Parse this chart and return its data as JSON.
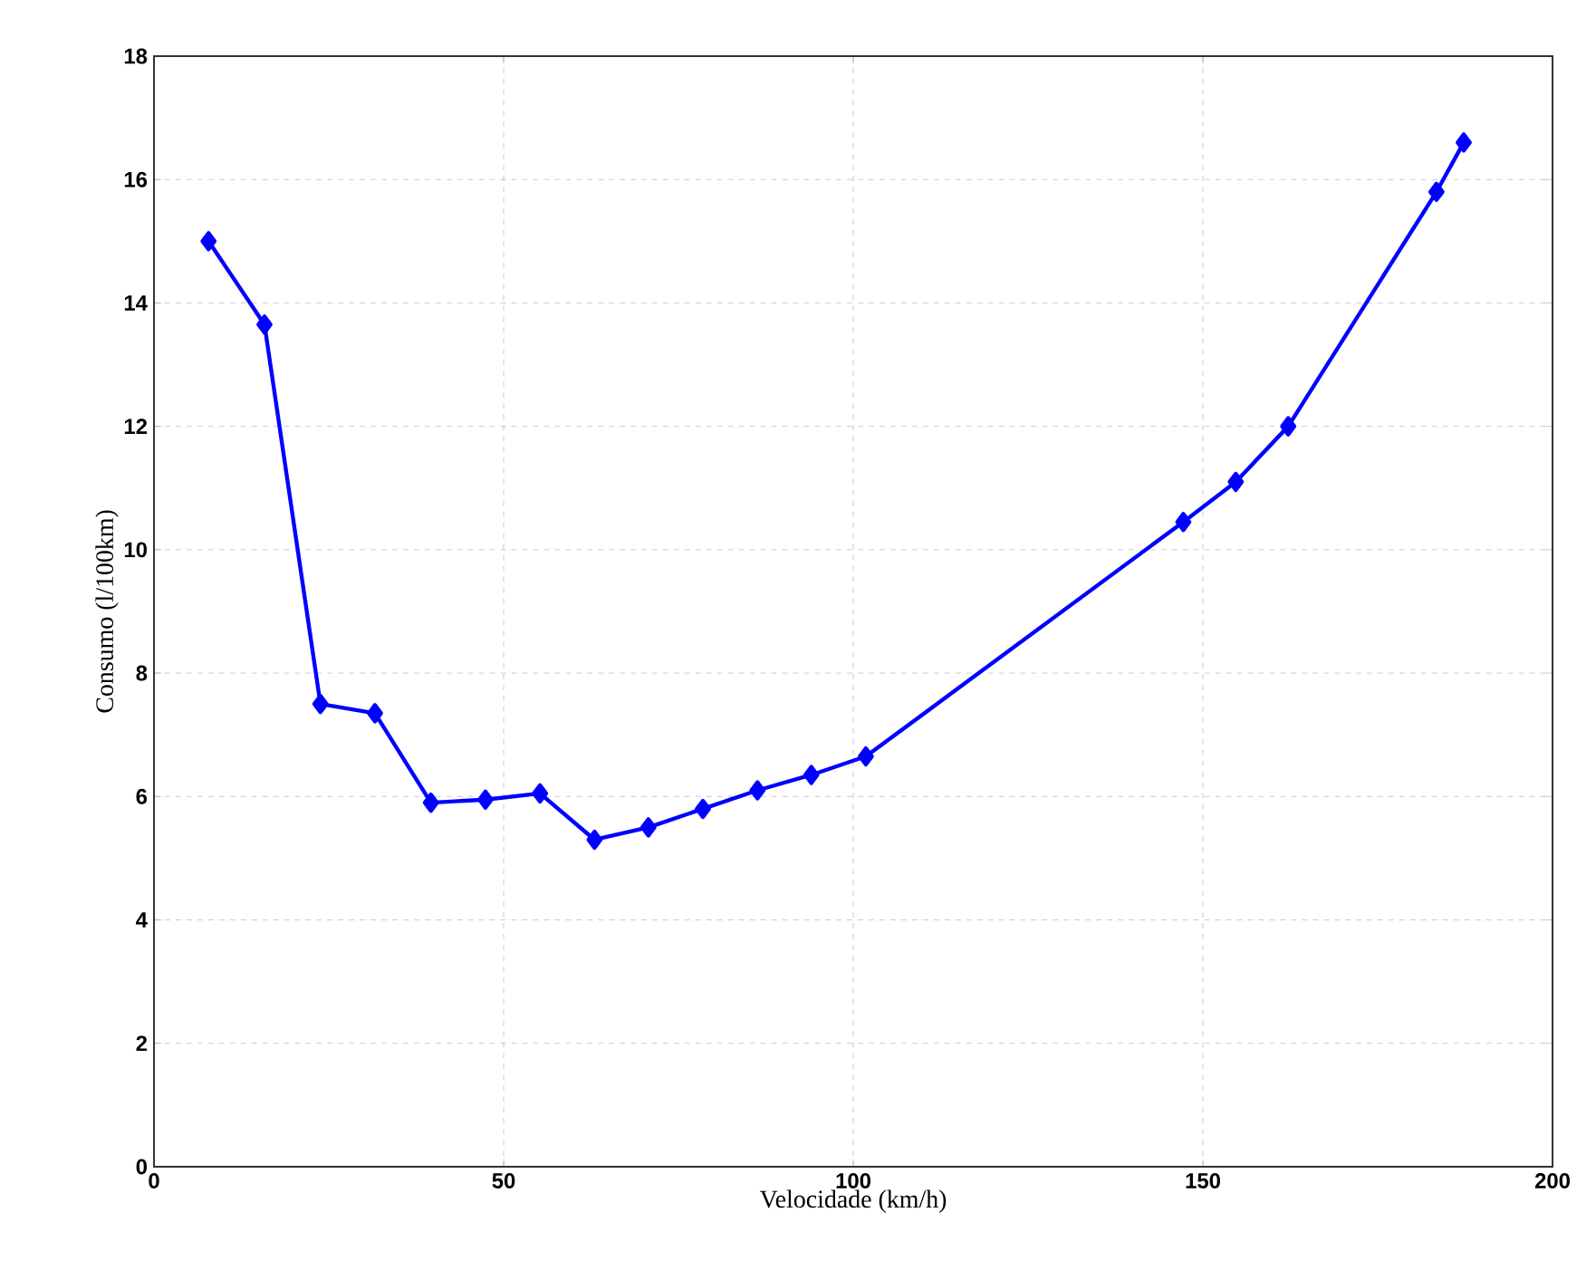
{
  "chart_data": {
    "type": "line",
    "xlabel": "Velocidade (km/h)",
    "ylabel": "Consumo (l/100km)",
    "x": [
      7.8,
      15.8,
      23.8,
      31.6,
      39.6,
      47.4,
      55.2,
      63,
      70.7,
      78.5,
      86.3,
      94,
      101.8,
      147.2,
      154.7,
      162.2,
      183.4,
      187.3
    ],
    "values": [
      15.0,
      13.65,
      7.5,
      7.35,
      5.9,
      5.95,
      6.05,
      5.3,
      5.5,
      5.8,
      6.1,
      6.35,
      6.65,
      10.45,
      11.1,
      12.0,
      15.8,
      16.6
    ],
    "color": "#0000ff",
    "marker": "diamond",
    "line_style": "solid",
    "xlim": [
      0,
      200
    ],
    "xticks": [
      0,
      50,
      100,
      150,
      200
    ],
    "ylim": [
      0,
      18
    ],
    "yticks": [
      0,
      2,
      4,
      6,
      8,
      10,
      12,
      14,
      16,
      18
    ],
    "grid": true
  }
}
